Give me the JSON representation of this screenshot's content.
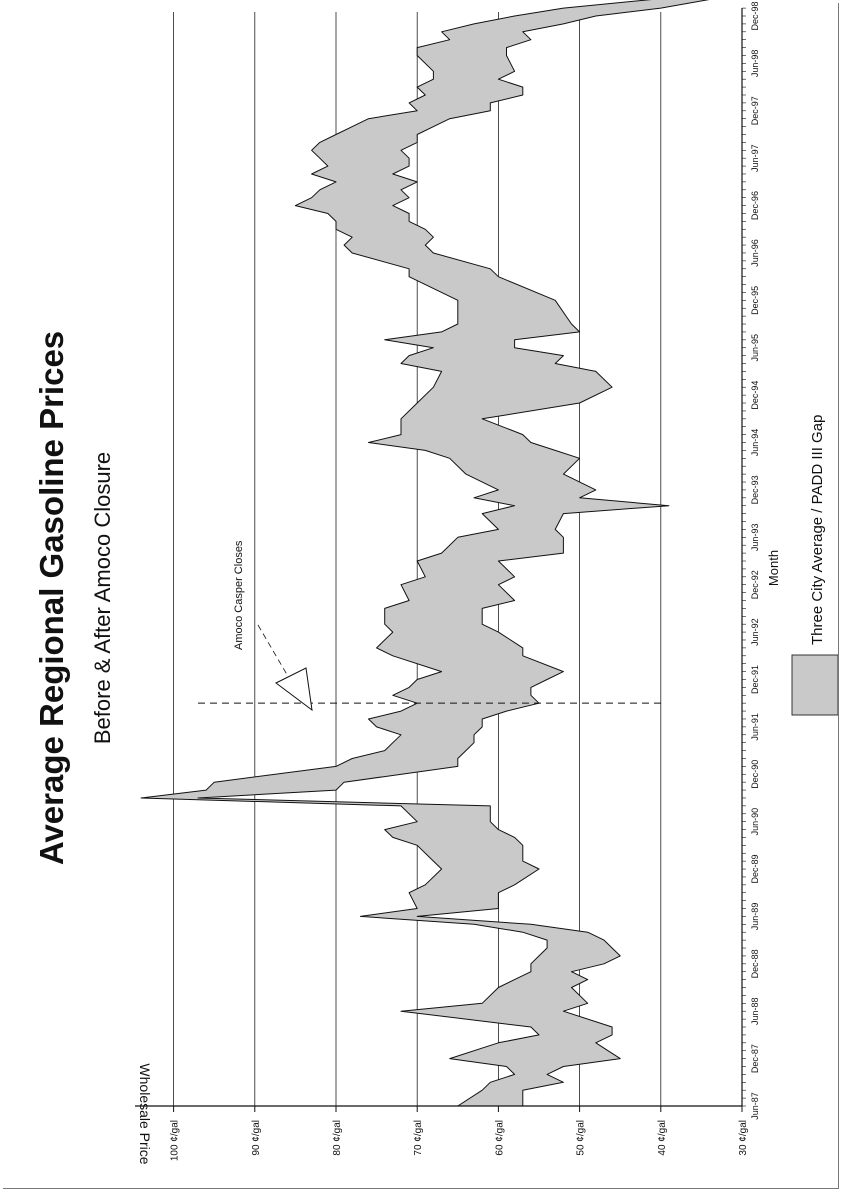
{
  "chart_data": {
    "type": "area",
    "title": "Average Regional Gasoline Prices",
    "subtitle": "Before & After Amoco Closure",
    "xlabel": "Month",
    "ylabel": "Wholesale Price",
    "ylim": [
      30,
      105
    ],
    "grid": true,
    "legend_placement": "bottom",
    "fill_color": "#c9c9c9",
    "y_ticks": [
      "30 ¢/gal",
      "40 ¢/gal",
      "50 ¢/gal",
      "60 ¢/gal",
      "70 ¢/gal",
      "80 ¢/gal",
      "90 ¢/gal",
      "100 ¢/gal"
    ],
    "x_ticks": [
      {
        "label": "Jun-87",
        "month": 0
      },
      {
        "label": "Dec-87",
        "month": 6
      },
      {
        "label": "Jun-88",
        "month": 12
      },
      {
        "label": "Dec-88",
        "month": 18
      },
      {
        "label": "Jun-89",
        "month": 24
      },
      {
        "label": "Dec-89",
        "month": 30
      },
      {
        "label": "Jun-90",
        "month": 36
      },
      {
        "label": "Dec-90",
        "month": 42
      },
      {
        "label": "Jun-91",
        "month": 48
      },
      {
        "label": "Dec-91",
        "month": 54
      },
      {
        "label": "Jun-92",
        "month": 60
      },
      {
        "label": "Dec-92",
        "month": 66
      },
      {
        "label": "Jun-93",
        "month": 72
      },
      {
        "label": "Dec-93",
        "month": 78
      },
      {
        "label": "Jun-94",
        "month": 84
      },
      {
        "label": "Dec-94",
        "month": 90
      },
      {
        "label": "Jun-95",
        "month": 96
      },
      {
        "label": "Dec-95",
        "month": 102
      },
      {
        "label": "Jun-96",
        "month": 108
      },
      {
        "label": "Dec-96",
        "month": 114
      },
      {
        "label": "Jun-97",
        "month": 120
      },
      {
        "label": "Dec-97",
        "month": 126
      },
      {
        "label": "Jun-98",
        "month": 132
      },
      {
        "label": "Dec-98",
        "month": 138
      }
    ],
    "series": [
      {
        "name": "Three City Average / PADD III Gap",
        "month": [
          0,
          2,
          3,
          4,
          5,
          6,
          8,
          9,
          10,
          12,
          13,
          15,
          16,
          17,
          18,
          19,
          20,
          21,
          22,
          23,
          24,
          25,
          27,
          28,
          30,
          31,
          33,
          34,
          35,
          36,
          38,
          39,
          40,
          41,
          43,
          44,
          45,
          46,
          47,
          48,
          49,
          50,
          51,
          52,
          53,
          54,
          55,
          57,
          58,
          60,
          61,
          63,
          64,
          66,
          67,
          69,
          70,
          72,
          73,
          75,
          76,
          77,
          78,
          80,
          82,
          83,
          84,
          85,
          87,
          89,
          91,
          93,
          94,
          95,
          96,
          97,
          98,
          99,
          102,
          105,
          106,
          108,
          109,
          110,
          111,
          112,
          113,
          114,
          115,
          116,
          117,
          118,
          119,
          120,
          121,
          122,
          123,
          125,
          126,
          127,
          128,
          129,
          130,
          131,
          133,
          134,
          135,
          136,
          137,
          138,
          139,
          141
        ],
        "high": [
          65,
          62,
          61,
          58,
          59,
          66,
          60,
          55,
          56,
          72,
          62,
          60,
          58,
          56,
          56,
          55,
          54,
          54,
          57,
          63,
          77,
          70,
          71,
          69,
          67,
          68,
          70,
          73,
          74,
          70,
          72,
          104,
          96,
          95,
          80,
          78,
          74,
          73,
          72,
          75,
          76,
          72,
          70,
          73,
          71,
          70,
          67,
          73,
          75,
          73,
          74,
          74,
          71,
          72,
          69,
          70,
          67,
          65,
          60,
          62,
          58,
          63,
          60,
          64,
          66,
          69,
          76,
          72,
          72,
          70,
          68,
          67,
          72,
          71,
          68,
          74,
          67,
          65,
          65,
          71,
          71,
          78,
          79,
          78,
          80,
          80,
          81,
          85,
          83,
          82,
          80,
          83,
          81,
          82,
          83,
          82,
          80,
          76,
          70,
          71,
          69,
          70,
          68,
          68,
          70,
          70,
          66,
          67,
          63,
          58,
          52,
          32
        ],
        "low": [
          57,
          57,
          52,
          54,
          52,
          45,
          48,
          46,
          46,
          52,
          49,
          51,
          49,
          51,
          47,
          45,
          46,
          47,
          49,
          56,
          70,
          60,
          60,
          58,
          55,
          57,
          57,
          58,
          60,
          61,
          61,
          97,
          80,
          79,
          65,
          65,
          64,
          63,
          63,
          62,
          62,
          59,
          55,
          56,
          56,
          54,
          52,
          57,
          57,
          60,
          62,
          62,
          58,
          60,
          58,
          60,
          52,
          52,
          53,
          52,
          39,
          50,
          48,
          52,
          50,
          53,
          56,
          57,
          62,
          50,
          46,
          48,
          53,
          52,
          58,
          58,
          50,
          51,
          53,
          60,
          61,
          68,
          69,
          68,
          69,
          71,
          71,
          73,
          71,
          72,
          70,
          73,
          71,
          71,
          72,
          70,
          70,
          66,
          61,
          61,
          57,
          57,
          60,
          58,
          59,
          59,
          56,
          57,
          52,
          48,
          40,
          29
        ]
      }
    ],
    "annotation": {
      "text": "Amoco Casper Closes",
      "month": 51
    }
  }
}
